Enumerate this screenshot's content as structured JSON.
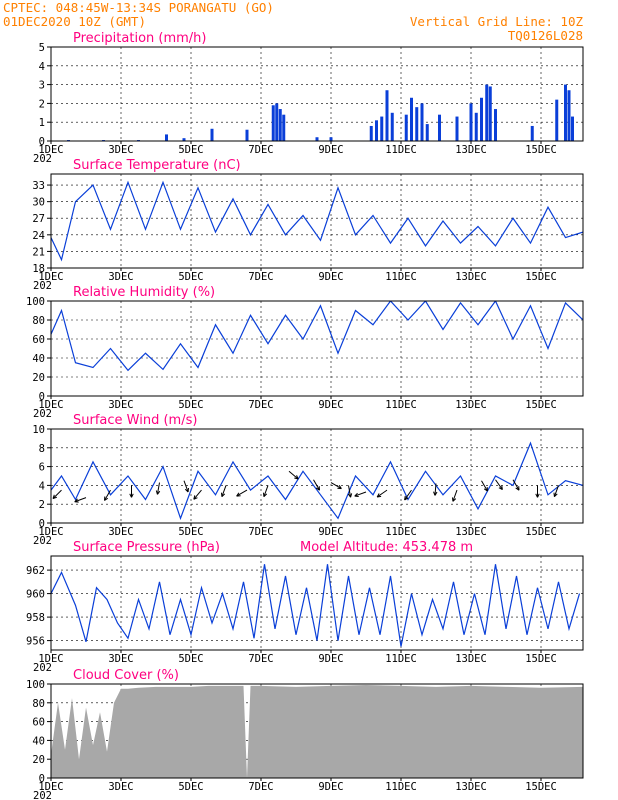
{
  "header": {
    "line1": "CPTEC:  048:45W-13:34S  PORANGATU (GO)",
    "line2": "01DEC2020 10Z (GMT)",
    "right1": "Vertical Grid Line: 10Z",
    "right2": "TQ0126L028"
  },
  "colors": {
    "header": "#ff8000",
    "title": "#ff0080",
    "series": "#0a3fd8",
    "cloud": "#a8a8a8",
    "axis": "#000000"
  },
  "x_axis": {
    "ticks": [
      "1DEC",
      "3DEC",
      "5DEC",
      "7DEC",
      "9DEC",
      "11DEC",
      "13DEC",
      "15DEC"
    ],
    "tick_days": [
      1,
      3,
      5,
      7,
      9,
      11,
      13,
      15
    ],
    "range_days": [
      1,
      16.2
    ],
    "year_label": "202"
  },
  "chart_data": [
    {
      "id": "precip",
      "type": "bar",
      "title": "Precipitation (mm/h)",
      "ylim": [
        0,
        5
      ],
      "yticks": [
        0,
        1,
        2,
        3,
        4,
        5
      ],
      "grid": true,
      "x": [
        1.5,
        2.5,
        3.5,
        4.3,
        4.8,
        5.6,
        6.6,
        7.35,
        7.45,
        7.55,
        7.65,
        8.6,
        9.0,
        10.15,
        10.3,
        10.45,
        10.6,
        10.75,
        11.15,
        11.3,
        11.45,
        11.6,
        11.75,
        12.1,
        12.6,
        13.0,
        13.15,
        13.3,
        13.45,
        13.55,
        13.7,
        14.75,
        15.45,
        15.7,
        15.8,
        15.9
      ],
      "values": [
        0.05,
        0.05,
        0.05,
        0.35,
        0.15,
        0.65,
        0.6,
        1.9,
        2.0,
        1.7,
        1.4,
        0.2,
        0.2,
        0.8,
        1.1,
        1.3,
        2.7,
        1.5,
        1.4,
        2.3,
        1.8,
        2.0,
        0.9,
        1.4,
        1.3,
        2.0,
        1.5,
        2.3,
        3.0,
        2.9,
        1.7,
        0.8,
        2.2,
        3.0,
        2.7,
        1.3
      ]
    },
    {
      "id": "temp",
      "type": "line",
      "title": "Surface Temperature (nC)",
      "ylim": [
        18,
        35
      ],
      "yticks": [
        18,
        21,
        24,
        27,
        30,
        33
      ],
      "grid": true,
      "x": [
        1.0,
        1.3,
        1.7,
        2.2,
        2.7,
        3.2,
        3.7,
        4.2,
        4.7,
        5.2,
        5.7,
        6.2,
        6.7,
        7.2,
        7.7,
        8.2,
        8.7,
        9.2,
        9.7,
        10.2,
        10.7,
        11.2,
        11.7,
        12.2,
        12.7,
        13.2,
        13.7,
        14.2,
        14.7,
        15.2,
        15.7,
        16.2
      ],
      "values": [
        23.5,
        19.5,
        30.0,
        33.0,
        25.0,
        33.5,
        25.0,
        33.5,
        25.0,
        32.5,
        24.5,
        30.5,
        24.0,
        29.5,
        24.0,
        27.5,
        23.0,
        32.5,
        24.0,
        27.5,
        22.5,
        27.0,
        22.0,
        26.5,
        22.5,
        25.5,
        22.0,
        27.0,
        22.5,
        29.0,
        23.5,
        24.5
      ]
    },
    {
      "id": "rh",
      "type": "line",
      "title": "Relative Humidity (%)",
      "ylim": [
        0,
        100
      ],
      "yticks": [
        0,
        20,
        40,
        60,
        80,
        100
      ],
      "grid": true,
      "x": [
        1.0,
        1.3,
        1.7,
        2.2,
        2.7,
        3.2,
        3.7,
        4.2,
        4.7,
        5.2,
        5.7,
        6.2,
        6.7,
        7.2,
        7.7,
        8.2,
        8.7,
        9.2,
        9.7,
        10.2,
        10.7,
        11.2,
        11.7,
        12.2,
        12.7,
        13.2,
        13.7,
        14.2,
        14.7,
        15.2,
        15.7,
        16.2
      ],
      "values": [
        65,
        90,
        35,
        30,
        50,
        27,
        45,
        28,
        55,
        30,
        75,
        45,
        85,
        55,
        85,
        60,
        95,
        45,
        90,
        75,
        100,
        80,
        100,
        70,
        98,
        75,
        100,
        60,
        95,
        50,
        98,
        80
      ]
    },
    {
      "id": "wind",
      "type": "line",
      "title": "Surface Wind (m/s)",
      "ylim": [
        0,
        10
      ],
      "yticks": [
        0,
        2,
        4,
        6,
        8,
        10
      ],
      "grid": true,
      "x": [
        1.0,
        1.3,
        1.7,
        2.2,
        2.7,
        3.2,
        3.7,
        4.2,
        4.7,
        5.2,
        5.7,
        6.2,
        6.7,
        7.2,
        7.7,
        8.2,
        8.7,
        9.2,
        9.7,
        10.2,
        10.7,
        11.2,
        11.7,
        12.2,
        12.7,
        13.2,
        13.7,
        14.2,
        14.7,
        15.2,
        15.7,
        16.2
      ],
      "values": [
        3.5,
        5.0,
        2.5,
        6.5,
        3.0,
        5.0,
        2.5,
        6.0,
        0.5,
        5.5,
        3.0,
        6.5,
        3.5,
        5.0,
        2.5,
        5.5,
        3.0,
        0.5,
        5.0,
        3.0,
        6.5,
        2.5,
        5.5,
        3.0,
        5.0,
        1.5,
        5.0,
        4.0,
        8.5,
        3.0,
        4.5,
        4.0
      ],
      "arrows": [
        {
          "x": 1.3,
          "y": 3.5,
          "dir": 225
        },
        {
          "x": 2.0,
          "y": 2.7,
          "dir": 200
        },
        {
          "x": 2.7,
          "y": 3.5,
          "dir": 240
        },
        {
          "x": 3.3,
          "y": 4.0,
          "dir": 270
        },
        {
          "x": 4.1,
          "y": 4.3,
          "dir": 260
        },
        {
          "x": 4.8,
          "y": 4.5,
          "dir": 290
        },
        {
          "x": 5.3,
          "y": 3.5,
          "dir": 230
        },
        {
          "x": 6.0,
          "y": 4.0,
          "dir": 250
        },
        {
          "x": 6.6,
          "y": 3.5,
          "dir": 210
        },
        {
          "x": 7.2,
          "y": 4.0,
          "dir": 250
        },
        {
          "x": 7.8,
          "y": 5.5,
          "dir": 320
        },
        {
          "x": 8.5,
          "y": 4.6,
          "dir": 300
        },
        {
          "x": 9.0,
          "y": 4.3,
          "dir": 330
        },
        {
          "x": 9.5,
          "y": 4.0,
          "dir": 280
        },
        {
          "x": 10.0,
          "y": 3.3,
          "dir": 200
        },
        {
          "x": 10.6,
          "y": 3.5,
          "dir": 215
        },
        {
          "x": 11.3,
          "y": 3.5,
          "dir": 235
        },
        {
          "x": 12.0,
          "y": 4.2,
          "dir": 265
        },
        {
          "x": 12.6,
          "y": 3.5,
          "dir": 250
        },
        {
          "x": 13.3,
          "y": 4.5,
          "dir": 300
        },
        {
          "x": 13.7,
          "y": 4.6,
          "dir": 305
        },
        {
          "x": 14.2,
          "y": 4.6,
          "dir": 300
        },
        {
          "x": 14.9,
          "y": 4.0,
          "dir": 270
        },
        {
          "x": 15.5,
          "y": 4.0,
          "dir": 250
        }
      ]
    },
    {
      "id": "pres",
      "type": "line",
      "title": "Surface Pressure (hPa)",
      "subtitle": "Model Altitude: 453.478  m",
      "ylim": [
        955.2,
        963.2
      ],
      "yticks": [
        956,
        958,
        960,
        962
      ],
      "grid": true,
      "x": [
        1.0,
        1.3,
        1.7,
        2.0,
        2.3,
        2.6,
        2.9,
        3.2,
        3.5,
        3.8,
        4.1,
        4.4,
        4.7,
        5.0,
        5.3,
        5.6,
        5.9,
        6.2,
        6.5,
        6.8,
        7.1,
        7.4,
        7.7,
        8.0,
        8.3,
        8.6,
        8.9,
        9.2,
        9.5,
        9.8,
        10.1,
        10.4,
        10.7,
        11.0,
        11.3,
        11.6,
        11.9,
        12.2,
        12.5,
        12.8,
        13.1,
        13.4,
        13.7,
        14.0,
        14.3,
        14.6,
        14.9,
        15.2,
        15.5,
        15.8,
        16.1
      ],
      "values": [
        960.0,
        961.8,
        959.0,
        955.9,
        960.5,
        959.5,
        957.5,
        956.2,
        959.5,
        957.0,
        961.0,
        956.5,
        959.5,
        956.5,
        960.5,
        957.5,
        960.0,
        957.0,
        961.0,
        956.2,
        962.5,
        957.0,
        961.5,
        956.5,
        960.5,
        956.0,
        962.5,
        956.0,
        961.5,
        956.5,
        960.5,
        956.5,
        961.5,
        955.5,
        960.0,
        956.5,
        959.5,
        957.0,
        961.0,
        956.5,
        960.0,
        956.5,
        962.5,
        957.0,
        961.5,
        956.5,
        960.5,
        957.0,
        961.0,
        957.0,
        960.0
      ]
    },
    {
      "id": "cloud",
      "type": "area",
      "title": "Cloud Cover (%)",
      "ylim": [
        0,
        100
      ],
      "yticks": [
        0,
        20,
        40,
        60,
        80,
        100
      ],
      "grid": true,
      "x": [
        1.0,
        1.2,
        1.4,
        1.6,
        1.8,
        2.0,
        2.2,
        2.4,
        2.6,
        2.8,
        3.0,
        3.2,
        3.5,
        4.0,
        4.5,
        5.0,
        5.5,
        6.0,
        6.5,
        6.6,
        6.7,
        7.0,
        8.0,
        9.0,
        10.0,
        11.0,
        12.0,
        13.0,
        14.0,
        15.0,
        16.2
      ],
      "values": [
        25,
        80,
        30,
        85,
        20,
        75,
        35,
        70,
        28,
        80,
        95,
        95,
        96,
        97,
        97,
        97,
        98,
        98,
        98,
        0,
        98,
        98,
        97,
        98,
        99,
        98,
        97,
        98,
        97,
        96,
        97
      ]
    }
  ]
}
